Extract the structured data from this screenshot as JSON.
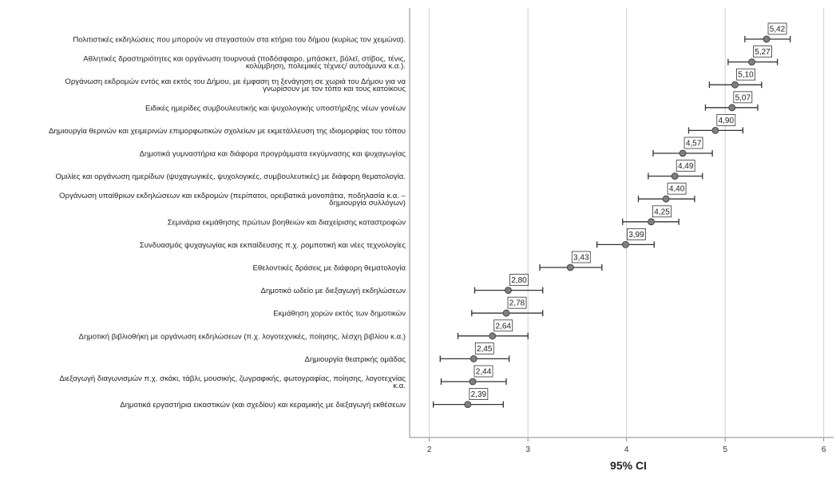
{
  "chart_data": {
    "type": "errorbar",
    "xlabel": "95% CI",
    "xlim": [
      1.8,
      6.1
    ],
    "xticks": [
      2,
      3,
      4,
      5,
      6
    ],
    "xtick_labels": [
      "2",
      "3",
      "4",
      "5",
      "6"
    ],
    "grid": "vertical",
    "marker_color": "#7f7f7f",
    "errorbar_color": "#333333",
    "items": [
      {
        "label": "Πολιτιστικές εκδηλώσεις που μπορούν να στεγαστούν στα κτήρια του δήμου (κυρίως τον χειμώνα).",
        "mean": 5.42,
        "mean_label": "5,42",
        "ci_low": 5.2,
        "ci_high": 5.66
      },
      {
        "label": "Αθλητικές δραστηριότητες και οργάνωση τουρνουά (ποδόσφαιρο, μπάσκετ, βόλεϊ, στίβος, τένις, κολύμβηση, πολεμικές τέχνες/ αυτοάμυνα κ.α.).",
        "mean": 5.27,
        "mean_label": "5,27",
        "ci_low": 5.03,
        "ci_high": 5.53
      },
      {
        "label": "Οργάνωση εκδρομών εντός και εκτός του Δήμου, με έμφαση τη ξενάγηση σε χωριά του Δήμου για να γνωρίσουν με τον τόπο και τους κατοίκους",
        "mean": 5.1,
        "mean_label": "5,10",
        "ci_low": 4.84,
        "ci_high": 5.37
      },
      {
        "label": "Ειδικές ημερίδες συμβουλευτικής και ψυχολογικής υποστήριξης νέων γονέων",
        "mean": 5.07,
        "mean_label": "5,07",
        "ci_low": 4.8,
        "ci_high": 5.33
      },
      {
        "label": "Δημιουργία θερινών και χειμερινών επιμορφωτικών σχολείων με εκμετάλλευση της ιδιομορφίας του τόπου",
        "mean": 4.9,
        "mean_label": "4,90",
        "ci_low": 4.63,
        "ci_high": 5.18
      },
      {
        "label": "Δημοτικά γυμναστήρια και διάφορα προγράμματα εκγύμνασης και ψυχαγωγίας",
        "mean": 4.57,
        "mean_label": "4,57",
        "ci_low": 4.27,
        "ci_high": 4.87
      },
      {
        "label": "Ομιλίες και οργάνωση ημερίδων (ψυχαγωγικές, ψυχολογικές, συμβουλευτικές) με διάφορη θεματολογία.",
        "mean": 4.49,
        "mean_label": "4,49",
        "ci_low": 4.22,
        "ci_high": 4.77
      },
      {
        "label": "Οργάνωση υπαίθριων εκδηλώσεων και εκδρομών (περίπατοι, ορειβατικά μονοπάτια, ποδηλασία κ.α. – δημιουργία συλλόγων)",
        "mean": 4.4,
        "mean_label": "4,40",
        "ci_low": 4.12,
        "ci_high": 4.69
      },
      {
        "label": "Σεμινάρια εκμάθησης πρώτων βοηθειών και διαχείρισης καταστροφών",
        "mean": 4.25,
        "mean_label": "4,25",
        "ci_low": 3.96,
        "ci_high": 4.53
      },
      {
        "label": "Συνδυασμός ψυχαγωγίας και εκπαίδευσης π.χ. ρομποτική και νέες τεχνολογίες",
        "mean": 3.99,
        "mean_label": "3,99",
        "ci_low": 3.7,
        "ci_high": 4.28
      },
      {
        "label": "Εθελοντικές δράσεις με διάφορη θεματολογία",
        "mean": 3.43,
        "mean_label": "3,43",
        "ci_low": 3.12,
        "ci_high": 3.75
      },
      {
        "label": "Δημοτικό ωδείο με διεξαγωγή εκδηλώσεων",
        "mean": 2.8,
        "mean_label": "2,80",
        "ci_low": 2.46,
        "ci_high": 3.15
      },
      {
        "label": "Εκμάθηση χορών εκτός των δημοτικών",
        "mean": 2.78,
        "mean_label": "2,78",
        "ci_low": 2.43,
        "ci_high": 3.15
      },
      {
        "label": "Δημοτική βιβλιοθήκη με οργάνωση εκδηλώσεων (π.χ. λογοτεχνικές, ποίησης, λέσχη βιβλίου κ.α.)",
        "mean": 2.64,
        "mean_label": "2,64",
        "ci_low": 2.29,
        "ci_high": 3.0
      },
      {
        "label": "Δημιουργία θεατρικής ομάδας",
        "mean": 2.45,
        "mean_label": "2,45",
        "ci_low": 2.11,
        "ci_high": 2.81
      },
      {
        "label": "Διεξαγωγή διαγωνισμών π.χ. σκάκι, τάβλι, μουσικής, ζωγραφικής, φωτογραφίας, ποίησης, λογοτεχνίας κ.α.",
        "mean": 2.44,
        "mean_label": "2,44",
        "ci_low": 2.12,
        "ci_high": 2.78
      },
      {
        "label": "Δημοτικά εργαστήρια εικαστικών (και σχεδίου) και κεραμικής με διεξαγωγή εκθέσεων",
        "mean": 2.39,
        "mean_label": "2,39",
        "ci_low": 2.04,
        "ci_high": 2.75
      }
    ]
  }
}
